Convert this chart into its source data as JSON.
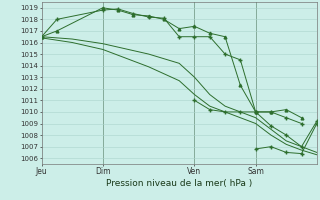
{
  "title": "Pression niveau de la mer( hPa )",
  "background_color": "#cceee8",
  "grid_color": "#aad4cc",
  "line_color": "#2d6e2d",
  "ylim": [
    1005.5,
    1019.5
  ],
  "yticks": [
    1006,
    1007,
    1008,
    1009,
    1010,
    1011,
    1012,
    1013,
    1014,
    1015,
    1016,
    1017,
    1018,
    1019
  ],
  "xtick_labels": [
    "Jeu",
    "Dim",
    "Ven",
    "Sam"
  ],
  "xtick_positions": [
    0,
    24,
    60,
    84
  ],
  "xlim": [
    0,
    108
  ],
  "vlines": [
    24,
    60,
    84
  ],
  "line1_x": [
    0,
    6,
    12,
    18,
    24,
    30,
    36,
    42,
    48,
    54,
    60,
    66,
    72,
    78,
    84,
    90,
    96,
    102,
    108
  ],
  "line1_y": [
    1016.5,
    1016.4,
    1016.3,
    1016.1,
    1015.9,
    1015.6,
    1015.3,
    1015.0,
    1014.6,
    1014.2,
    1013.0,
    1011.5,
    1010.5,
    1010.0,
    1009.5,
    1008.5,
    1007.5,
    1007.0,
    1006.5
  ],
  "line2_x": [
    0,
    6,
    12,
    18,
    24,
    30,
    36,
    42,
    48,
    54,
    60,
    66,
    72,
    78,
    84,
    90,
    96,
    102,
    108
  ],
  "line2_y": [
    1016.4,
    1016.2,
    1016.0,
    1015.7,
    1015.4,
    1014.9,
    1014.4,
    1013.9,
    1013.3,
    1012.7,
    1011.5,
    1010.5,
    1010.0,
    1009.5,
    1009.0,
    1008.0,
    1007.2,
    1006.7,
    1006.3
  ],
  "line3_x": [
    0,
    6,
    24,
    30,
    36,
    42,
    48,
    54,
    60,
    66,
    72,
    78,
    84,
    90,
    96,
    102
  ],
  "line3_y": [
    1016.5,
    1017.0,
    1019.0,
    1018.8,
    1018.4,
    1018.3,
    1018.0,
    1017.2,
    1017.4,
    1016.8,
    1016.5,
    1012.3,
    1010.0,
    1010.0,
    1010.2,
    1009.5
  ],
  "line4_x": [
    0,
    6,
    24,
    30,
    36,
    42,
    48,
    54,
    60,
    66,
    72,
    78,
    84,
    90,
    96,
    102
  ],
  "line4_y": [
    1016.5,
    1018.0,
    1018.8,
    1018.9,
    1018.5,
    1018.2,
    1018.1,
    1016.5,
    1016.5,
    1016.5,
    1015.0,
    1014.5,
    1010.0,
    1010.0,
    1009.5,
    1009.0
  ],
  "line5_x": [
    60,
    66,
    72,
    78,
    84,
    90,
    96,
    102,
    108
  ],
  "line5_y": [
    1011.0,
    1010.2,
    1010.0,
    1010.0,
    1010.0,
    1008.8,
    1008.0,
    1007.0,
    1009.2
  ],
  "line6_x": [
    84,
    90,
    96,
    102,
    108
  ],
  "line6_y": [
    1006.8,
    1007.0,
    1006.5,
    1006.4,
    1009.0
  ]
}
